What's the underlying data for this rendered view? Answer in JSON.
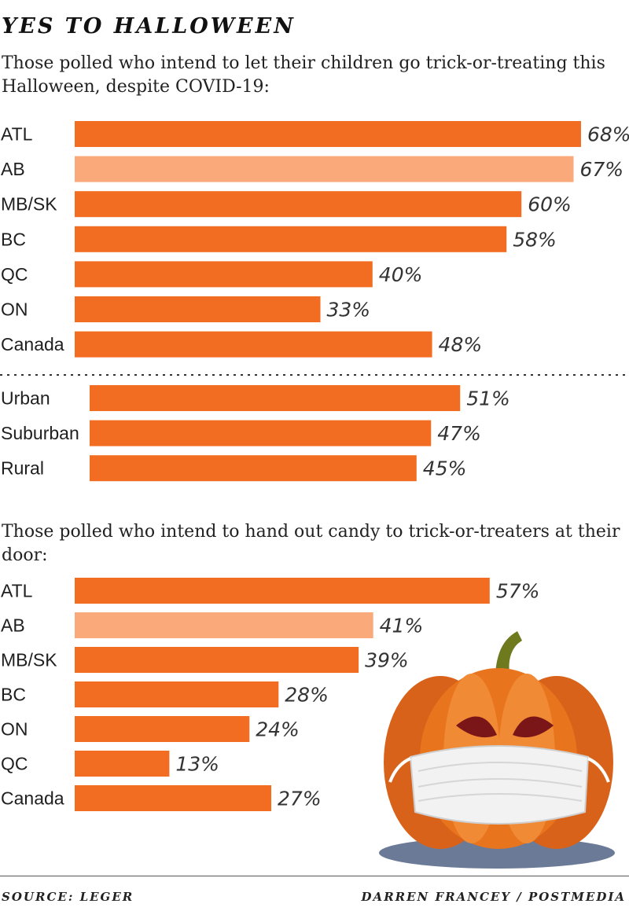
{
  "title": "YES TO HALLOWEEN",
  "footer": {
    "source": "SOURCE: LEGER",
    "credit": "DARREN FRANCEY / POSTMEDIA"
  },
  "colors": {
    "bar": "#f26c21",
    "highlight": "#f9a97a",
    "pumpkin": "#e9741e",
    "mask": "#f2f2f2",
    "shadow": "#6b7a96",
    "stem": "#6f7a1f"
  },
  "icons": {
    "illustration": "masked-pumpkin-icon"
  },
  "chart_data": [
    {
      "type": "bar",
      "orientation": "horizontal",
      "title": "Those polled who intend to let their children go trick-or-treating this Halloween, despite COVID-19:",
      "groups": [
        {
          "categories": [
            "ATL",
            "AB",
            "MB/SK",
            "BC",
            "QC",
            "ON",
            "Canada"
          ],
          "values": [
            68,
            67,
            60,
            58,
            40,
            33,
            48
          ],
          "labels": [
            "68%",
            "67%",
            "60%",
            "58%",
            "40%",
            "33%",
            "48%"
          ],
          "highlight": [
            "AB"
          ]
        },
        {
          "categories": [
            "Urban",
            "Suburban",
            "Rural"
          ],
          "values": [
            51,
            47,
            45
          ],
          "labels": [
            "51%",
            "47%",
            "45%"
          ],
          "highlight": []
        }
      ],
      "unit": "%",
      "grid": false,
      "legend": "none"
    },
    {
      "type": "bar",
      "orientation": "horizontal",
      "title": "Those polled who intend to hand out candy to trick-or-treaters at their door:",
      "groups": [
        {
          "categories": [
            "ATL",
            "AB",
            "MB/SK",
            "BC",
            "ON",
            "QC",
            "Canada"
          ],
          "values": [
            57,
            41,
            39,
            28,
            24,
            13,
            27
          ],
          "labels": [
            "57%",
            "41%",
            "39%",
            "28%",
            "24%",
            "13%",
            "27%"
          ],
          "highlight": [
            "AB"
          ]
        }
      ],
      "unit": "%",
      "grid": false,
      "legend": "none"
    }
  ]
}
